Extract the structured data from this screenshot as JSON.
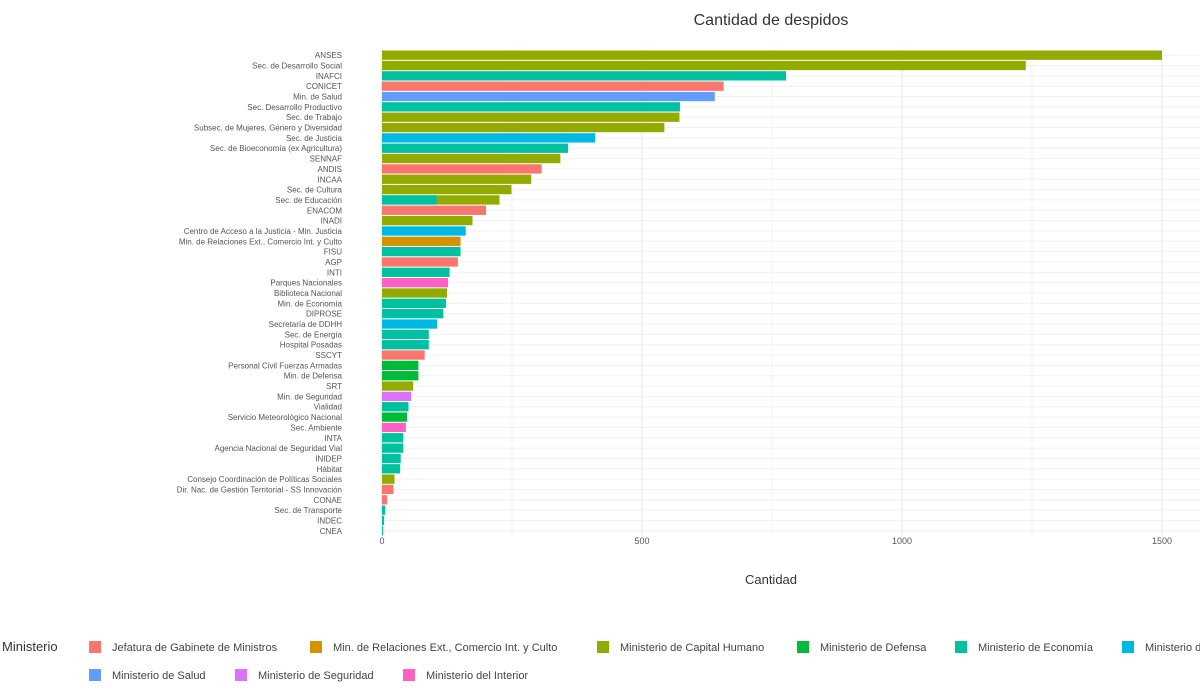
{
  "chart_data": {
    "type": "bar",
    "orientation": "horizontal",
    "title": "Cantidad de despidos",
    "xlabel": "Cantidad",
    "ylabel": "",
    "xlim": [
      0,
      1560
    ],
    "xticks": [
      0,
      500,
      1000,
      1500
    ],
    "grid": true,
    "legend_title": "Ministerio",
    "legend_position": "bottom",
    "legend": [
      {
        "name": "Jefatura de Gabinete de Ministros",
        "color": "#F8766D"
      },
      {
        "name": "Min. de Relaciones Ext., Comercio Int. y Culto",
        "color": "#D39200"
      },
      {
        "name": "Ministerio de Capital Humano",
        "color": "#93AA00"
      },
      {
        "name": "Ministerio de Defensa",
        "color": "#00BA38"
      },
      {
        "name": "Ministerio de Economía",
        "color": "#00C19F"
      },
      {
        "name": "Ministerio de Justicia",
        "color": "#00B9E3"
      },
      {
        "name": "Ministerio de Salud",
        "color": "#619CFF"
      },
      {
        "name": "Ministerio de Seguridad",
        "color": "#DB72FB"
      },
      {
        "name": "Ministerio del Interior",
        "color": "#FF61C3"
      }
    ],
    "bars": [
      {
        "label": "ANSES",
        "value": 1500,
        "ministry": 2
      },
      {
        "label": "Sec. de Desarrollo Social",
        "value": 1238,
        "ministry": 2
      },
      {
        "label": "INAFCI",
        "value": 777,
        "ministry": 4
      },
      {
        "label": "CONICET",
        "value": 657,
        "ministry": 0
      },
      {
        "label": "Min. de Salud",
        "value": 640,
        "ministry": 6
      },
      {
        "label": "Sec. Desarrollo Productivo",
        "value": 573,
        "ministry": 4
      },
      {
        "label": "Sec. de Trabajo",
        "value": 572,
        "ministry": 2
      },
      {
        "label": "Subsec. de Mujeres, Género y Diversidad",
        "value": 543,
        "ministry": 2
      },
      {
        "label": "Sec. de Justicia",
        "value": 410,
        "ministry": 5
      },
      {
        "label": "Sec. de Bioeconomía (ex Agricultura)",
        "value": 358,
        "ministry": 4
      },
      {
        "label": "SENNAF",
        "value": 343,
        "ministry": 2
      },
      {
        "label": "ANDIS",
        "value": 307,
        "ministry": 0
      },
      {
        "label": "INCAA",
        "value": 287,
        "ministry": 2
      },
      {
        "label": "Sec. de Cultura",
        "value": 249,
        "ministry": 2
      },
      {
        "label": "Sec. de Educación",
        "value": 226,
        "ministry": 2,
        "segments": [
          {
            "value": 105,
            "ministry": 4
          }
        ]
      },
      {
        "label": "ENACOM",
        "value": 200,
        "ministry": 0
      },
      {
        "label": "INADI",
        "value": 174,
        "ministry": 2
      },
      {
        "label": "Centro de Acceso a la Justicia - Min. Justicia",
        "value": 161,
        "ministry": 5
      },
      {
        "label": "Min. de Relaciones Ext., Comercio Int. y Culto",
        "value": 151,
        "ministry": 1
      },
      {
        "label": "FISU",
        "value": 151,
        "ministry": 4
      },
      {
        "label": "AGP",
        "value": 146,
        "ministry": 0
      },
      {
        "label": "INTI",
        "value": 130,
        "ministry": 4
      },
      {
        "label": "Parques Nacionales",
        "value": 127,
        "ministry": 8
      },
      {
        "label": "Biblioteca Nacional",
        "value": 125,
        "ministry": 2
      },
      {
        "label": "Min. de Economía",
        "value": 123,
        "ministry": 4
      },
      {
        "label": "DIPROSE",
        "value": 118,
        "ministry": 4
      },
      {
        "label": "Secretaría de DDHH",
        "value": 106,
        "ministry": 5
      },
      {
        "label": "Sec. de Energía",
        "value": 90,
        "ministry": 4
      },
      {
        "label": "Hospital Posadas",
        "value": 90,
        "ministry": 4
      },
      {
        "label": "SSCYT",
        "value": 82,
        "ministry": 0
      },
      {
        "label": "Personal Civil Fuerzas Armadas",
        "value": 70,
        "ministry": 3
      },
      {
        "label": "Min. de Defensa",
        "value": 70,
        "ministry": 3
      },
      {
        "label": "SRT",
        "value": 60,
        "ministry": 2
      },
      {
        "label": "Min. de Seguridad",
        "value": 56,
        "ministry": 7
      },
      {
        "label": "Vialidad",
        "value": 51,
        "ministry": 4
      },
      {
        "label": "Servicio Meteorológico Nacional",
        "value": 48,
        "ministry": 3
      },
      {
        "label": "Sec. Ambiente",
        "value": 46,
        "ministry": 8
      },
      {
        "label": "INTA",
        "value": 41,
        "ministry": 4
      },
      {
        "label": "Agencia Nacional de Seguridad Vial",
        "value": 41,
        "ministry": 4
      },
      {
        "label": "INIDEP",
        "value": 36,
        "ministry": 4
      },
      {
        "label": "Hábitat",
        "value": 35,
        "ministry": 4
      },
      {
        "label": "Consejo Coordinación de Políticas Sociales",
        "value": 24,
        "ministry": 2
      },
      {
        "label": "Dir. Nac. de Gestión Territorial - SS Innovación",
        "value": 22,
        "ministry": 0
      },
      {
        "label": "CONAE",
        "value": 10,
        "ministry": 0
      },
      {
        "label": "Sec. de Transporte",
        "value": 6,
        "ministry": 4
      },
      {
        "label": "INDEC",
        "value": 4,
        "ministry": 4
      },
      {
        "label": "CNEA",
        "value": 1,
        "ministry": 4
      }
    ]
  }
}
